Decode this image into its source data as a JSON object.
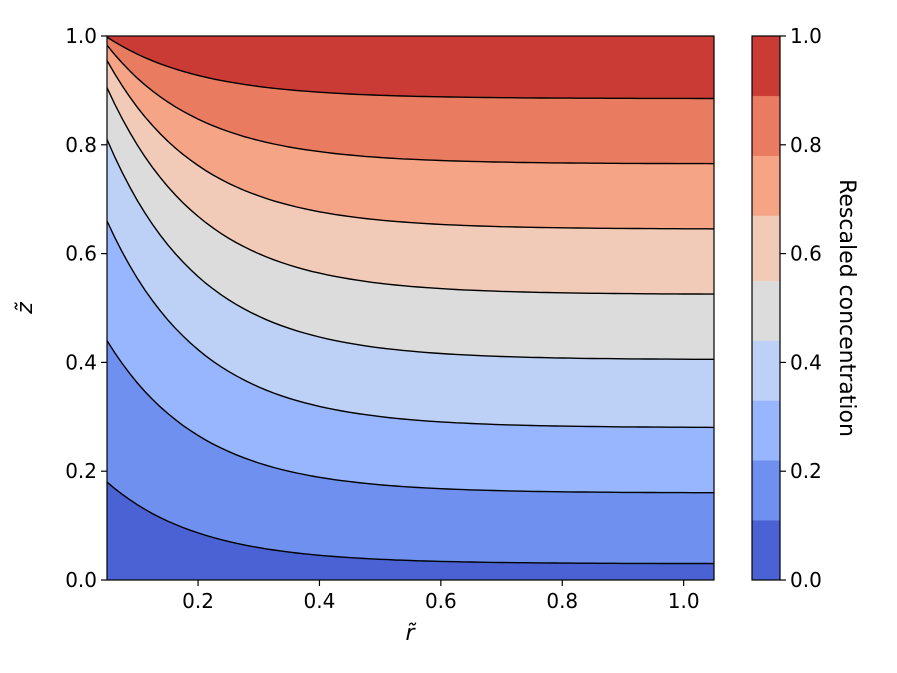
{
  "chart_data": {
    "type": "contour",
    "xlabel": "r̃",
    "ylabel": "z̃",
    "xlim": [
      0.05,
      1.05
    ],
    "ylim": [
      0.0,
      1.0
    ],
    "x_ticks": [
      "0.2",
      "0.4",
      "0.6",
      "0.8",
      "1.0"
    ],
    "y_ticks": [
      "0.0",
      "0.2",
      "0.4",
      "0.6",
      "0.8",
      "1.0"
    ],
    "colorbar": {
      "label": "Rescaled concentration",
      "ticks": [
        "0.0",
        "0.2",
        "0.4",
        "0.6",
        "0.8",
        "1.0"
      ],
      "levels": [
        0.0,
        0.11,
        0.22,
        0.33,
        0.44,
        0.55,
        0.67,
        0.78,
        0.89,
        1.0
      ],
      "colors": [
        "#4a62d3",
        "#6f90ee",
        "#97b6fd",
        "#bdd0f5",
        "#dcdcdd",
        "#f2cbb8",
        "#f5a486",
        "#e97c60",
        "#cb3b36"
      ]
    },
    "contour_lines": [
      {
        "level": 0.11,
        "z_at_left": 0.18,
        "z_at_right": 0.03
      },
      {
        "level": 0.22,
        "z_at_left": 0.44,
        "z_at_right": 0.16
      },
      {
        "level": 0.33,
        "z_at_left": 0.66,
        "z_at_right": 0.28
      },
      {
        "level": 0.44,
        "z_at_left": 0.81,
        "z_at_right": 0.405
      },
      {
        "level": 0.55,
        "z_at_left": 0.905,
        "z_at_right": 0.525
      },
      {
        "level": 0.67,
        "z_at_left": 0.955,
        "z_at_right": 0.645
      },
      {
        "level": 0.78,
        "z_at_left": 0.983,
        "z_at_right": 0.765
      },
      {
        "level": 0.89,
        "z_at_left": 0.998,
        "z_at_right": 0.885
      }
    ]
  }
}
